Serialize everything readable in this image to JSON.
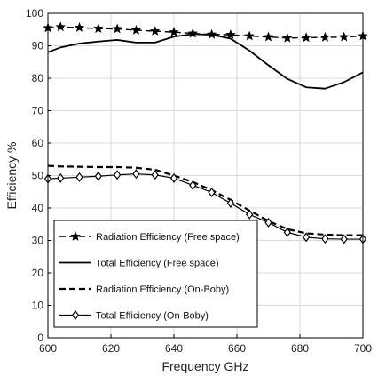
{
  "chart_data": {
    "type": "line",
    "title": "",
    "xlabel": "Frequency GHz",
    "ylabel": "Efficiency %",
    "xlim": [
      600,
      700
    ],
    "ylim": [
      0,
      100
    ],
    "xticks": [
      "600",
      "620",
      "640",
      "660",
      "680",
      "700"
    ],
    "yticks": [
      "0",
      "10",
      "20",
      "30",
      "40",
      "50",
      "60",
      "70",
      "80",
      "90",
      "100"
    ],
    "grid": true,
    "legend_position": "lower-left",
    "series": [
      {
        "name": "Radiation Efficiency (Free space)",
        "style": "dash-star",
        "color": "#000000",
        "x": [
          600,
          604,
          610,
          616,
          622,
          628,
          634,
          640,
          646,
          652,
          658,
          664,
          670,
          676,
          682,
          688,
          694,
          700
        ],
        "y": [
          95.5,
          95.8,
          95.6,
          95.3,
          95.2,
          94.8,
          94.5,
          94.2,
          93.8,
          93.5,
          93.4,
          93.0,
          92.7,
          92.4,
          92.5,
          92.6,
          92.7,
          93.0
        ]
      },
      {
        "name": "Total Efficiency (Free space)",
        "style": "solid",
        "color": "#000000",
        "x": [
          600,
          604,
          610,
          616,
          622,
          628,
          634,
          640,
          646,
          652,
          658,
          664,
          670,
          676,
          682,
          688,
          694,
          700
        ],
        "y": [
          88.0,
          89.5,
          90.7,
          91.3,
          91.8,
          91.0,
          91.0,
          92.8,
          93.6,
          93.4,
          92.2,
          88.5,
          84.0,
          79.8,
          77.2,
          76.8,
          78.8,
          81.8
        ]
      },
      {
        "name": "Radiation Efficiency (On-Boby)",
        "style": "dashed",
        "color": "#000000",
        "x": [
          600,
          604,
          610,
          616,
          622,
          628,
          634,
          640,
          646,
          652,
          658,
          664,
          670,
          676,
          682,
          688,
          694,
          700
        ],
        "y": [
          53.0,
          52.8,
          52.7,
          52.6,
          52.6,
          52.4,
          51.8,
          50.0,
          48.0,
          45.5,
          42.5,
          39.2,
          36.0,
          33.5,
          32.2,
          31.8,
          31.6,
          31.6
        ]
      },
      {
        "name": "Total Efficiency (On-Boby)",
        "style": "solid-diamond",
        "color": "#000000",
        "x": [
          600,
          604,
          610,
          616,
          622,
          628,
          634,
          640,
          646,
          652,
          658,
          664,
          670,
          676,
          682,
          688,
          694,
          700
        ],
        "y": [
          49.0,
          49.2,
          49.5,
          49.8,
          50.2,
          50.5,
          50.2,
          49.2,
          47.0,
          44.8,
          41.5,
          38.0,
          35.5,
          32.5,
          31.0,
          30.5,
          30.4,
          30.4
        ]
      }
    ]
  }
}
